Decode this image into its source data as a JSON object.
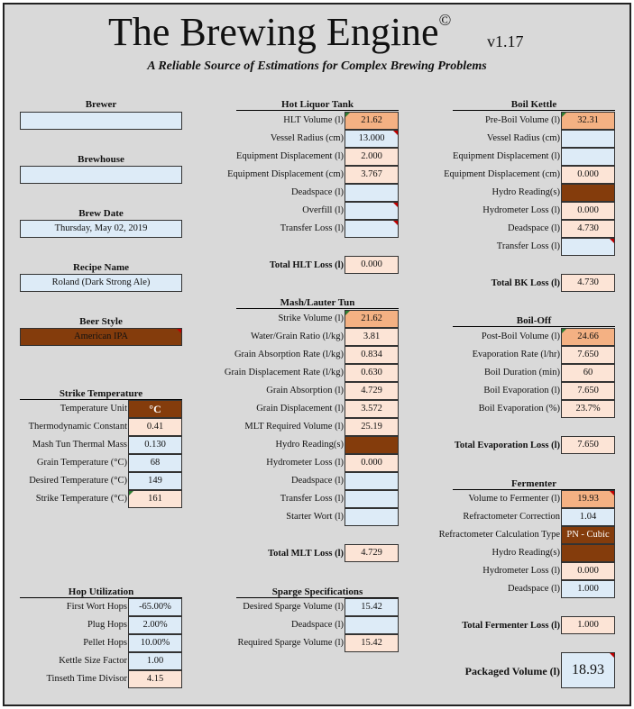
{
  "header": {
    "title": "The Brewing Engine",
    "copyright": "©",
    "version": "v1.17",
    "subtitle": "A Reliable Source of Estimations for Complex Brewing Problems"
  },
  "left": {
    "brewer_label": "Brewer",
    "brewer_value": "",
    "brewhouse_label": "Brewhouse",
    "brewhouse_value": "",
    "brew_date_label": "Brew Date",
    "brew_date_value": "Thursday, May 02, 2019",
    "recipe_label": "Recipe Name",
    "recipe_value": "Roland (Dark Strong Ale)",
    "beer_style_label": "Beer Style",
    "beer_style_value": "American IPA"
  },
  "strike": {
    "title": "Strike Temperature",
    "rows": [
      {
        "label": "Temperature Unit",
        "value": "°C"
      },
      {
        "label": "Thermodynamic Constant",
        "value": "0.41"
      },
      {
        "label": "Mash Tun Thermal Mass",
        "value": "0.130"
      },
      {
        "label": "Grain Temperature (°C)",
        "value": "68"
      },
      {
        "label": "Desired Temperature (°C)",
        "value": "149"
      },
      {
        "label": "Strike Temperature (°C)",
        "value": "161"
      }
    ]
  },
  "hop": {
    "title": "Hop Utilization",
    "rows": [
      {
        "label": "First Wort Hops",
        "value": "-65.00%"
      },
      {
        "label": "Plug Hops",
        "value": "2.00%"
      },
      {
        "label": "Pellet Hops",
        "value": "10.00%"
      },
      {
        "label": "Kettle Size Factor",
        "value": "1.00"
      },
      {
        "label": "Tinseth Time Divisor",
        "value": "4.15"
      }
    ]
  },
  "hlt": {
    "title": "Hot Liquor Tank",
    "rows": [
      {
        "label": "HLT Volume (l)",
        "value": "21.62"
      },
      {
        "label": "Vessel Radius (cm)",
        "value": "13.000"
      },
      {
        "label": "Equipment Displacement (l)",
        "value": "2.000"
      },
      {
        "label": "Equipment Displacement (cm)",
        "value": "3.767"
      },
      {
        "label": "Deadspace (l)",
        "value": ""
      },
      {
        "label": "Overfill (l)",
        "value": ""
      },
      {
        "label": "Transfer Loss (l)",
        "value": ""
      }
    ],
    "total_label": "Total HLT Loss (l)",
    "total_value": "0.000"
  },
  "mash": {
    "title": "Mash/Lauter Tun",
    "rows": [
      {
        "label": "Strike Volume (l)",
        "value": "21.62"
      },
      {
        "label": "Water/Grain Ratio (l/kg)",
        "value": "3.81"
      },
      {
        "label": "Grain Absorption Rate (l/kg)",
        "value": "0.834"
      },
      {
        "label": "Grain Displacement Rate (l/kg)",
        "value": "0.630"
      },
      {
        "label": "Grain Absorption (l)",
        "value": "4.729"
      },
      {
        "label": "Grain Displacement (l)",
        "value": "3.572"
      },
      {
        "label": "MLT Required Volume (l)",
        "value": "25.19"
      },
      {
        "label": "Hydro Reading(s)",
        "value": ""
      },
      {
        "label": "Hydrometer Loss (l)",
        "value": "0.000"
      },
      {
        "label": "Deadspace (l)",
        "value": ""
      },
      {
        "label": "Transfer Loss (l)",
        "value": ""
      },
      {
        "label": "Starter Wort (l)",
        "value": ""
      }
    ],
    "total_label": "Total MLT Loss (l)",
    "total_value": "4.729"
  },
  "sparge": {
    "title": "Sparge Specifications",
    "rows": [
      {
        "label": "Desired Sparge Volume (l)",
        "value": "15.42"
      },
      {
        "label": "Deadspace (l)",
        "value": ""
      },
      {
        "label": "Required Sparge Volume (l)",
        "value": "15.42"
      }
    ]
  },
  "bk": {
    "title": "Boil Kettle",
    "rows": [
      {
        "label": "Pre-Boil Volume (l)",
        "value": "32.31"
      },
      {
        "label": "Vessel Radius (cm)",
        "value": ""
      },
      {
        "label": "Equipment Displacement (l)",
        "value": ""
      },
      {
        "label": "Equipment Displacement (cm)",
        "value": "0.000"
      },
      {
        "label": "Hydro Reading(s)",
        "value": ""
      },
      {
        "label": "Hydrometer Loss (l)",
        "value": "0.000"
      },
      {
        "label": "Deadspace (l)",
        "value": "4.730"
      },
      {
        "label": "Transfer Loss (l)",
        "value": ""
      }
    ],
    "total_label": "Total BK Loss (l)",
    "total_value": "4.730"
  },
  "boiloff": {
    "title": "Boil-Off",
    "rows": [
      {
        "label": "Post-Boil Volume (l)",
        "value": "24.66"
      },
      {
        "label": "Evaporation Rate (l/hr)",
        "value": "7.650"
      },
      {
        "label": "Boil Duration (min)",
        "value": "60"
      },
      {
        "label": "Boil Evaporation (l)",
        "value": "7.650"
      },
      {
        "label": "Boil Evaporation (%)",
        "value": "23.7%"
      }
    ],
    "total_label": "Total Evaporation Loss (l)",
    "total_value": "7.650"
  },
  "fermenter": {
    "title": "Fermenter",
    "rows": [
      {
        "label": "Volume to Fermenter (l)",
        "value": "19.93"
      },
      {
        "label": "Refractometer Correction",
        "value": "1.04"
      },
      {
        "label": "Refractometer Calculation Type",
        "value": "PN - Cubic"
      },
      {
        "label": "Hydro Reading(s)",
        "value": ""
      },
      {
        "label": "Hydrometer Loss (l)",
        "value": "0.000"
      },
      {
        "label": "Deadspace (l)",
        "value": "1.000"
      }
    ],
    "total_label": "Total Fermenter Loss (l)",
    "total_value": "1.000",
    "packaged_label": "Packaged Volume (l)",
    "packaged_value": "18.93"
  }
}
